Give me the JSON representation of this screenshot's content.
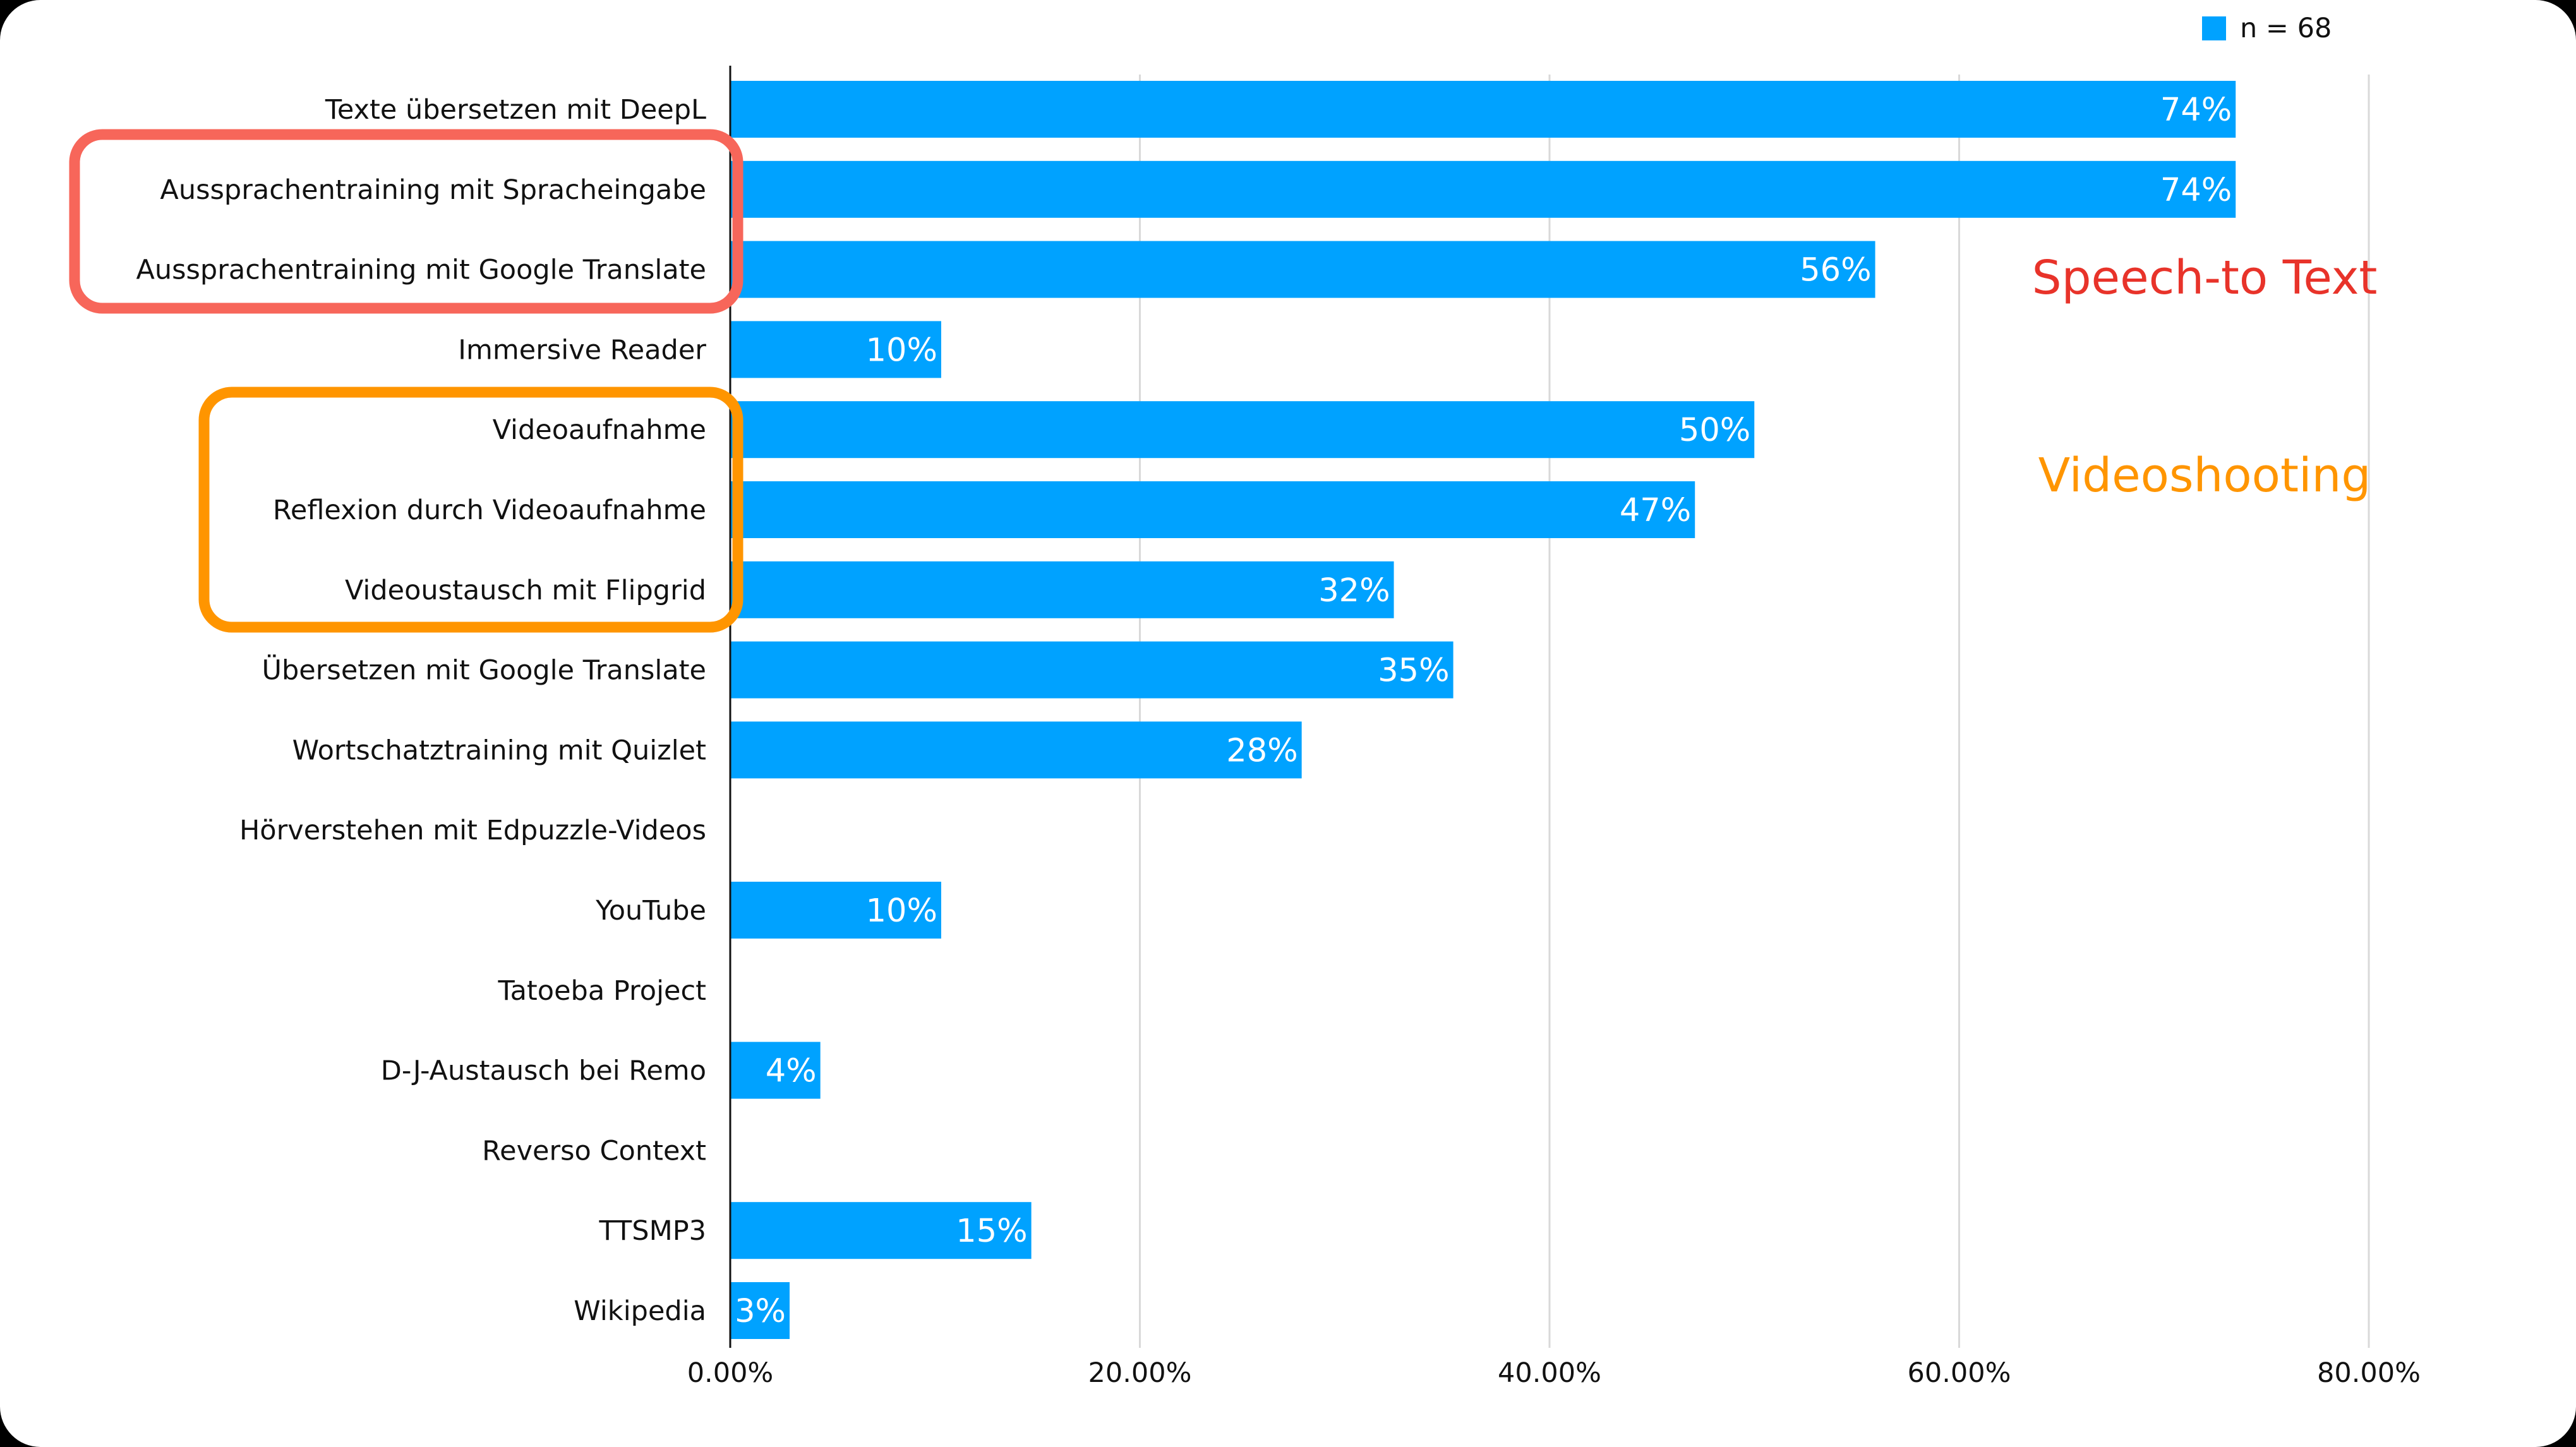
{
  "chart_data": {
    "type": "bar",
    "orientation": "horizontal",
    "categories": [
      "Texte übersetzen mit DeepL",
      "Aussprachentraining mit Spracheingabe",
      "Aussprachentraining mit Google Translate",
      "Immersive Reader",
      "Videoaufnahme",
      "Reflexion durch Videoaufnahme",
      "Videoustausch mit Flipgrid",
      "Übersetzen mit Google Translate",
      "Wortschatztraining mit Quizlet",
      "Hörverstehen mit Edpuzzle-Videos",
      "YouTube",
      "Tatoeba Project",
      "D-J-Austausch bei Remo",
      "Reverso Context",
      "TTSMP3",
      "Wikipedia"
    ],
    "series": [
      {
        "name": "n = 68",
        "values": [
          73.5,
          73.5,
          55.9,
          10.3,
          50.0,
          47.1,
          32.4,
          35.3,
          27.9,
          0,
          10.3,
          0,
          4.4,
          0,
          14.7,
          2.9
        ],
        "labels": [
          "74%",
          "74%",
          "56%",
          "10%",
          "50%",
          "47%",
          "32%",
          "35%",
          "28%",
          "",
          "10%",
          "",
          "4%",
          "",
          "15%",
          "3%"
        ],
        "color": "#00a2ff"
      }
    ],
    "xlim": [
      0,
      80
    ],
    "xticks": [
      0,
      20,
      40,
      60,
      80
    ],
    "xtick_labels": [
      "0.00%",
      "20.00%",
      "40.00%",
      "60.00%",
      "80.00%"
    ],
    "grid": true,
    "legend": "top-right",
    "title": "",
    "xlabel": "",
    "ylabel": "",
    "annotations": [
      {
        "text": "Speech-to Text",
        "color": "#e8332a",
        "box_color": "#f7665a",
        "groups": [
          "Aussprachentraining mit Spracheingabe",
          "Aussprachentraining mit Google Translate"
        ]
      },
      {
        "text": "Videoshooting",
        "color": "#ff9500",
        "box_color": "#ff9500",
        "groups": [
          "Videoaufnahme",
          "Reflexion durch Videoaufnahme",
          "Videoustausch mit Flipgrid"
        ]
      }
    ]
  }
}
